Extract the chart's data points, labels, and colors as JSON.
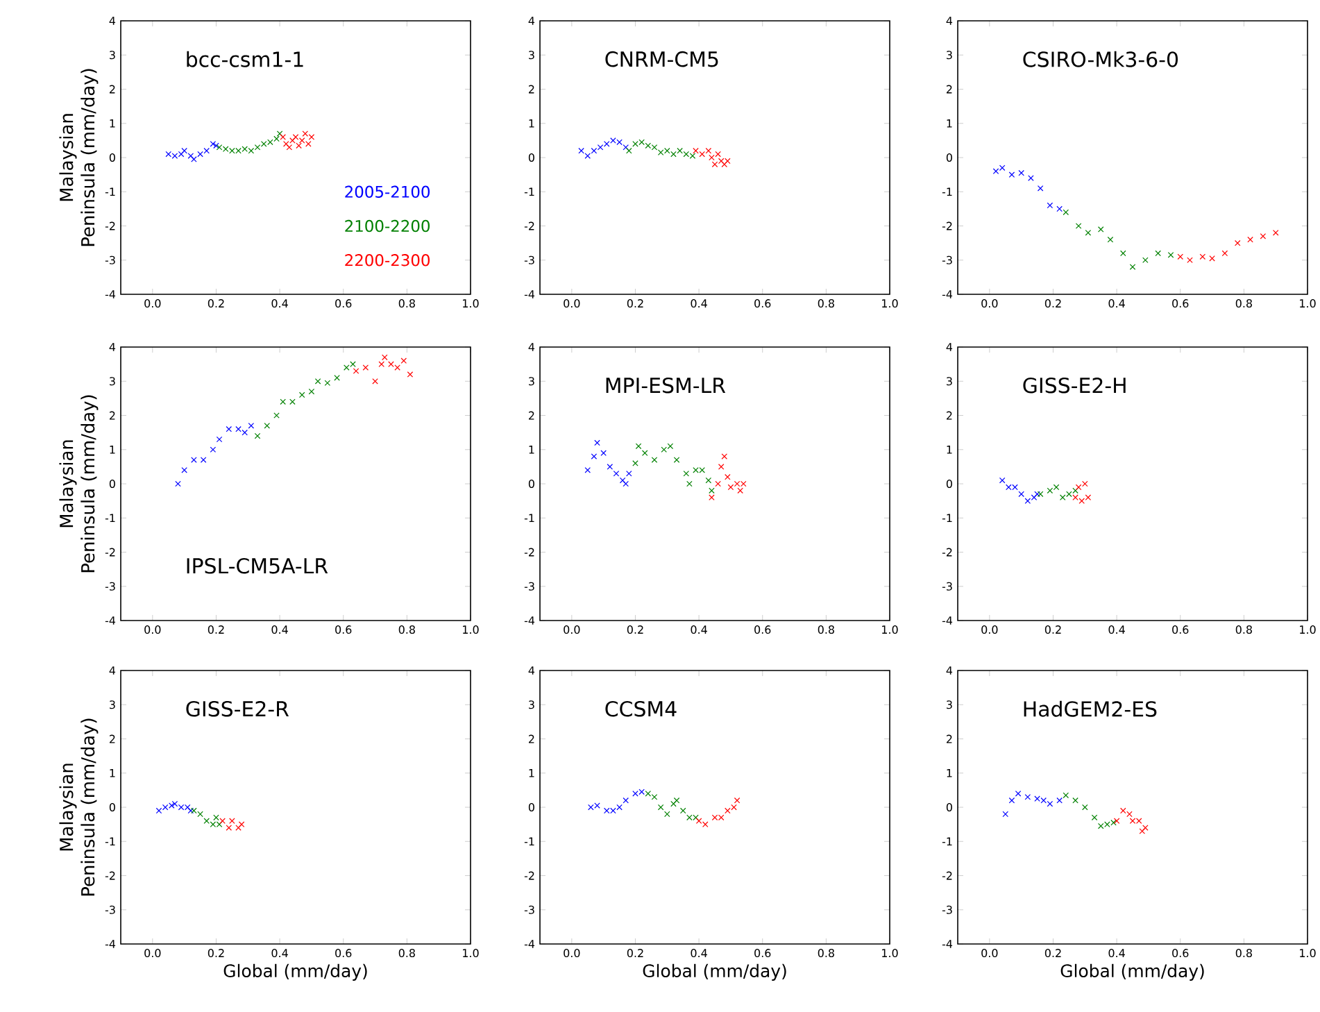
{
  "chart_data": [
    {
      "type": "scatter",
      "title": "bcc-csm1-1",
      "ylabel": "Malaysian Peninsula (mm/day)",
      "marker": "cross",
      "legend": "bottom right",
      "xlim": [
        -0.1,
        1.0
      ],
      "ylim": [
        -4,
        4
      ],
      "xticks": [
        {
          "value": 0.0,
          "label": "0.0"
        },
        {
          "value": 0.2,
          "label": "0.2"
        },
        {
          "value": 0.4,
          "label": "0.4"
        },
        {
          "value": 0.6,
          "label": "0.6"
        },
        {
          "value": 0.8,
          "label": "0.8"
        },
        {
          "value": 1.0,
          "label": "1.0"
        }
      ],
      "yticks": [
        -4,
        -3,
        -2,
        -1,
        0,
        1,
        2,
        3,
        4
      ],
      "series": [
        {
          "name": "2005-2100",
          "color": "#0000ff",
          "x": [
            0.05,
            0.07,
            0.09,
            0.1,
            0.12,
            0.13,
            0.15,
            0.17,
            0.19,
            0.2
          ],
          "values": [
            0.1,
            0.05,
            0.1,
            0.2,
            0.05,
            -0.05,
            0.1,
            0.2,
            0.4,
            0.35
          ]
        },
        {
          "name": "2100-2200",
          "color": "#008000",
          "x": [
            0.21,
            0.23,
            0.25,
            0.27,
            0.29,
            0.31,
            0.33,
            0.35,
            0.37,
            0.39,
            0.4
          ],
          "values": [
            0.3,
            0.25,
            0.2,
            0.2,
            0.25,
            0.2,
            0.3,
            0.4,
            0.45,
            0.55,
            0.7
          ]
        },
        {
          "name": "2200-2300",
          "color": "#ff0000",
          "x": [
            0.41,
            0.42,
            0.43,
            0.44,
            0.45,
            0.46,
            0.47,
            0.48,
            0.49,
            0.5
          ],
          "values": [
            0.6,
            0.4,
            0.3,
            0.5,
            0.6,
            0.35,
            0.5,
            0.7,
            0.4,
            0.6
          ]
        }
      ]
    },
    {
      "type": "scatter",
      "title": "CNRM-CM5",
      "marker": "cross",
      "xlim": [
        -0.1,
        1.0
      ],
      "ylim": [
        -4,
        4
      ],
      "xticks": [
        {
          "value": 0.0,
          "label": "0.0"
        },
        {
          "value": 0.2,
          "label": "0.2"
        },
        {
          "value": 0.4,
          "label": "0.4"
        },
        {
          "value": 0.6,
          "label": "0.6"
        },
        {
          "value": 0.8,
          "label": "0.8"
        },
        {
          "value": 1.0,
          "label": "1.0"
        }
      ],
      "yticks": [
        -4,
        -3,
        -2,
        -1,
        0,
        1,
        2,
        3,
        4
      ],
      "series": [
        {
          "color": "#0000ff",
          "x": [
            0.03,
            0.05,
            0.07,
            0.09,
            0.11,
            0.13,
            0.15,
            0.17
          ],
          "values": [
            0.2,
            0.05,
            0.2,
            0.3,
            0.4,
            0.5,
            0.45,
            0.3
          ]
        },
        {
          "color": "#008000",
          "x": [
            0.18,
            0.2,
            0.22,
            0.24,
            0.26,
            0.28,
            0.3,
            0.32,
            0.34,
            0.36,
            0.38
          ],
          "values": [
            0.2,
            0.4,
            0.45,
            0.35,
            0.3,
            0.15,
            0.2,
            0.1,
            0.2,
            0.1,
            0.05
          ]
        },
        {
          "color": "#ff0000",
          "x": [
            0.39,
            0.41,
            0.43,
            0.44,
            0.45,
            0.46,
            0.47,
            0.48,
            0.49
          ],
          "values": [
            0.2,
            0.1,
            0.2,
            0.0,
            -0.2,
            0.1,
            -0.1,
            -0.2,
            -0.1
          ]
        }
      ]
    },
    {
      "type": "scatter",
      "title": "CSIRO-Mk3-6-0",
      "marker": "cross",
      "xlim": [
        -0.1,
        1.0
      ],
      "ylim": [
        -4,
        4
      ],
      "xticks": [
        {
          "value": 0.0,
          "label": "0.0"
        },
        {
          "value": 0.2,
          "label": "0.2"
        },
        {
          "value": 0.4,
          "label": "0.4"
        },
        {
          "value": 0.6,
          "label": "0.6"
        },
        {
          "value": 0.8,
          "label": "0.8"
        },
        {
          "value": 1.0,
          "label": "1.0"
        }
      ],
      "yticks": [
        -4,
        -3,
        -2,
        -1,
        0,
        1,
        2,
        3,
        4
      ],
      "series": [
        {
          "color": "#0000ff",
          "x": [
            0.02,
            0.04,
            0.07,
            0.1,
            0.13,
            0.16,
            0.19,
            0.22
          ],
          "values": [
            -0.4,
            -0.3,
            -0.5,
            -0.45,
            -0.6,
            -0.9,
            -1.4,
            -1.5
          ]
        },
        {
          "color": "#008000",
          "x": [
            0.24,
            0.28,
            0.31,
            0.35,
            0.38,
            0.42,
            0.45,
            0.49,
            0.53,
            0.57
          ],
          "values": [
            -1.6,
            -2.0,
            -2.2,
            -2.1,
            -2.4,
            -2.8,
            -3.2,
            -3.0,
            -2.8,
            -2.85
          ]
        },
        {
          "color": "#ff0000",
          "x": [
            0.6,
            0.63,
            0.67,
            0.7,
            0.74,
            0.78,
            0.82,
            0.86,
            0.9
          ],
          "values": [
            -2.9,
            -3.0,
            -2.9,
            -2.95,
            -2.8,
            -2.5,
            -2.4,
            -2.3,
            -2.2
          ]
        }
      ]
    },
    {
      "type": "scatter",
      "ylabel": "Malaysian Peninsula (mm/day)",
      "annotations": [
        "IPSL-CM5A-LR"
      ],
      "marker": "cross",
      "xlim": [
        -0.1,
        1.0
      ],
      "ylim": [
        -4,
        4
      ],
      "xticks": [
        {
          "value": 0.0,
          "label": "0.0"
        },
        {
          "value": 0.2,
          "label": "0.2"
        },
        {
          "value": 0.4,
          "label": "0.4"
        },
        {
          "value": 0.6,
          "label": "0.6"
        },
        {
          "value": 0.8,
          "label": "0.8"
        },
        {
          "value": 1.0,
          "label": "1.0"
        }
      ],
      "yticks": [
        -4,
        -3,
        -2,
        -1,
        0,
        1,
        2,
        3,
        4
      ],
      "series": [
        {
          "color": "#0000ff",
          "x": [
            0.08,
            0.1,
            0.13,
            0.16,
            0.19,
            0.21,
            0.24,
            0.27,
            0.29,
            0.31
          ],
          "values": [
            0.0,
            0.4,
            0.7,
            0.7,
            1.0,
            1.3,
            1.6,
            1.6,
            1.5,
            1.7
          ]
        },
        {
          "color": "#008000",
          "x": [
            0.33,
            0.36,
            0.39,
            0.41,
            0.44,
            0.47,
            0.5,
            0.52,
            0.55,
            0.58,
            0.61,
            0.63
          ],
          "values": [
            1.4,
            1.7,
            2.0,
            2.4,
            2.4,
            2.6,
            2.7,
            3.0,
            2.95,
            3.1,
            3.4,
            3.5
          ]
        },
        {
          "color": "#ff0000",
          "x": [
            0.64,
            0.67,
            0.7,
            0.72,
            0.73,
            0.75,
            0.77,
            0.79,
            0.81
          ],
          "values": [
            3.3,
            3.4,
            3.0,
            3.5,
            3.7,
            3.5,
            3.4,
            3.6,
            3.2
          ]
        }
      ]
    },
    {
      "type": "scatter",
      "title": "MPI-ESM-LR",
      "marker": "cross",
      "xlim": [
        -0.1,
        1.0
      ],
      "ylim": [
        -4,
        4
      ],
      "xticks": [
        {
          "value": 0.0,
          "label": "0.0"
        },
        {
          "value": 0.2,
          "label": "0.2"
        },
        {
          "value": 0.4,
          "label": "0.4"
        },
        {
          "value": 0.6,
          "label": "0.6"
        },
        {
          "value": 0.8,
          "label": "0.8"
        },
        {
          "value": 1.0,
          "label": "1.0"
        }
      ],
      "yticks": [
        -4,
        -3,
        -2,
        -1,
        0,
        1,
        2,
        3,
        4
      ],
      "series": [
        {
          "color": "#0000ff",
          "x": [
            0.05,
            0.07,
            0.08,
            0.1,
            0.12,
            0.14,
            0.16,
            0.17,
            0.18
          ],
          "values": [
            0.4,
            0.8,
            1.2,
            0.9,
            0.5,
            0.3,
            0.1,
            0.0,
            0.3
          ]
        },
        {
          "color": "#008000",
          "x": [
            0.2,
            0.21,
            0.23,
            0.26,
            0.29,
            0.31,
            0.33,
            0.36,
            0.37,
            0.39,
            0.41,
            0.43,
            0.44
          ],
          "values": [
            0.6,
            1.1,
            0.9,
            0.7,
            1.0,
            1.1,
            0.7,
            0.3,
            0.0,
            0.4,
            0.4,
            0.1,
            -0.2
          ]
        },
        {
          "color": "#ff0000",
          "x": [
            0.44,
            0.46,
            0.47,
            0.48,
            0.49,
            0.5,
            0.52,
            0.53,
            0.54
          ],
          "values": [
            -0.4,
            0.0,
            0.5,
            0.8,
            0.2,
            -0.1,
            0.0,
            -0.2,
            0.0
          ]
        }
      ]
    },
    {
      "type": "scatter",
      "title": "GISS-E2-H",
      "marker": "cross",
      "xlim": [
        -0.1,
        1.0
      ],
      "ylim": [
        -4,
        4
      ],
      "xticks": [
        {
          "value": 0.0,
          "label": "0.0"
        },
        {
          "value": 0.2,
          "label": "0.2"
        },
        {
          "value": 0.4,
          "label": "0.4"
        },
        {
          "value": 0.6,
          "label": "0.6"
        },
        {
          "value": 0.8,
          "label": "0.8"
        },
        {
          "value": 1.0,
          "label": "1.0"
        }
      ],
      "yticks": [
        -4,
        -3,
        -2,
        -1,
        0,
        1,
        2,
        3,
        4
      ],
      "series": [
        {
          "color": "#0000ff",
          "x": [
            0.04,
            0.06,
            0.08,
            0.1,
            0.12,
            0.14,
            0.15
          ],
          "values": [
            0.1,
            -0.1,
            -0.1,
            -0.3,
            -0.5,
            -0.4,
            -0.3
          ]
        },
        {
          "color": "#008000",
          "x": [
            0.16,
            0.19,
            0.21,
            0.23,
            0.25,
            0.27
          ],
          "values": [
            -0.3,
            -0.2,
            -0.1,
            -0.4,
            -0.3,
            -0.2
          ]
        },
        {
          "color": "#ff0000",
          "x": [
            0.27,
            0.28,
            0.29,
            0.3,
            0.31
          ],
          "values": [
            -0.4,
            -0.1,
            -0.5,
            0.0,
            -0.4
          ]
        }
      ]
    },
    {
      "type": "scatter",
      "title": "GISS-E2-R",
      "ylabel": "Malaysian Peninsula (mm/day)",
      "xlabel": "Global (mm/day)",
      "marker": "cross",
      "xlim": [
        -0.1,
        1.0
      ],
      "ylim": [
        -4,
        4
      ],
      "xticks": [
        {
          "value": 0.0,
          "label": "0.0"
        },
        {
          "value": 0.2,
          "label": "0.2"
        },
        {
          "value": 0.4,
          "label": "0.4"
        },
        {
          "value": 0.6,
          "label": "0.6"
        },
        {
          "value": 0.8,
          "label": "0.8"
        },
        {
          "value": 1.0,
          "label": "1.0"
        }
      ],
      "yticks": [
        -4,
        -3,
        -2,
        -1,
        0,
        1,
        2,
        3,
        4
      ],
      "series": [
        {
          "color": "#0000ff",
          "x": [
            0.02,
            0.04,
            0.06,
            0.07,
            0.09,
            0.11,
            0.12
          ],
          "values": [
            -0.1,
            0.0,
            0.05,
            0.1,
            0.0,
            0.0,
            -0.1
          ]
        },
        {
          "color": "#008000",
          "x": [
            0.13,
            0.15,
            0.17,
            0.19,
            0.2,
            0.21
          ],
          "values": [
            -0.1,
            -0.2,
            -0.4,
            -0.5,
            -0.3,
            -0.5
          ]
        },
        {
          "color": "#ff0000",
          "x": [
            0.22,
            0.24,
            0.25,
            0.27,
            0.28
          ],
          "values": [
            -0.4,
            -0.6,
            -0.4,
            -0.6,
            -0.5
          ]
        }
      ]
    },
    {
      "type": "scatter",
      "title": "CCSM4",
      "xlabel": "Global (mm/day)",
      "marker": "cross",
      "xlim": [
        -0.1,
        1.0
      ],
      "ylim": [
        -4,
        4
      ],
      "xticks": [
        {
          "value": 0.0,
          "label": "0.0"
        },
        {
          "value": 0.2,
          "label": "0.2"
        },
        {
          "value": 0.4,
          "label": "0.4"
        },
        {
          "value": 0.6,
          "label": "0.6"
        },
        {
          "value": 0.8,
          "label": "0.8"
        },
        {
          "value": 1.0,
          "label": "1.0"
        }
      ],
      "yticks": [
        -4,
        -3,
        -2,
        -1,
        0,
        1,
        2,
        3,
        4
      ],
      "series": [
        {
          "color": "#0000ff",
          "x": [
            0.06,
            0.08,
            0.11,
            0.13,
            0.15,
            0.17,
            0.2,
            0.22
          ],
          "values": [
            0.0,
            0.05,
            -0.1,
            -0.1,
            0.0,
            0.2,
            0.4,
            0.45
          ]
        },
        {
          "color": "#008000",
          "x": [
            0.24,
            0.26,
            0.28,
            0.3,
            0.32,
            0.33,
            0.35,
            0.37,
            0.39
          ],
          "values": [
            0.4,
            0.3,
            0.0,
            -0.2,
            0.1,
            0.2,
            -0.1,
            -0.3,
            -0.3
          ]
        },
        {
          "color": "#ff0000",
          "x": [
            0.4,
            0.42,
            0.45,
            0.47,
            0.49,
            0.51,
            0.52
          ],
          "values": [
            -0.4,
            -0.5,
            -0.3,
            -0.3,
            -0.1,
            0.0,
            0.2
          ]
        }
      ]
    },
    {
      "type": "scatter",
      "title": "HadGEM2-ES",
      "xlabel": "Global (mm/day)",
      "marker": "cross",
      "xlim": [
        -0.1,
        1.0
      ],
      "ylim": [
        -4,
        4
      ],
      "xticks": [
        {
          "value": 0.0,
          "label": "0.0"
        },
        {
          "value": 0.2,
          "label": "0.2"
        },
        {
          "value": 0.4,
          "label": "0.4"
        },
        {
          "value": 0.6,
          "label": "0.6"
        },
        {
          "value": 0.8,
          "label": "0.8"
        },
        {
          "value": 1.0,
          "label": "1.0"
        }
      ],
      "yticks": [
        -4,
        -3,
        -2,
        -1,
        0,
        1,
        2,
        3,
        4
      ],
      "series": [
        {
          "color": "#0000ff",
          "x": [
            0.05,
            0.07,
            0.09,
            0.12,
            0.15,
            0.17,
            0.19,
            0.22
          ],
          "values": [
            -0.2,
            0.2,
            0.4,
            0.3,
            0.25,
            0.2,
            0.1,
            0.2
          ]
        },
        {
          "color": "#008000",
          "x": [
            0.24,
            0.27,
            0.3,
            0.33,
            0.35,
            0.37,
            0.39
          ],
          "values": [
            0.35,
            0.2,
            0.0,
            -0.3,
            -0.55,
            -0.5,
            -0.45
          ]
        },
        {
          "color": "#ff0000",
          "x": [
            0.4,
            0.42,
            0.44,
            0.45,
            0.47,
            0.48,
            0.49
          ],
          "values": [
            -0.4,
            -0.1,
            -0.2,
            -0.4,
            -0.4,
            -0.7,
            -0.6
          ]
        }
      ]
    }
  ]
}
